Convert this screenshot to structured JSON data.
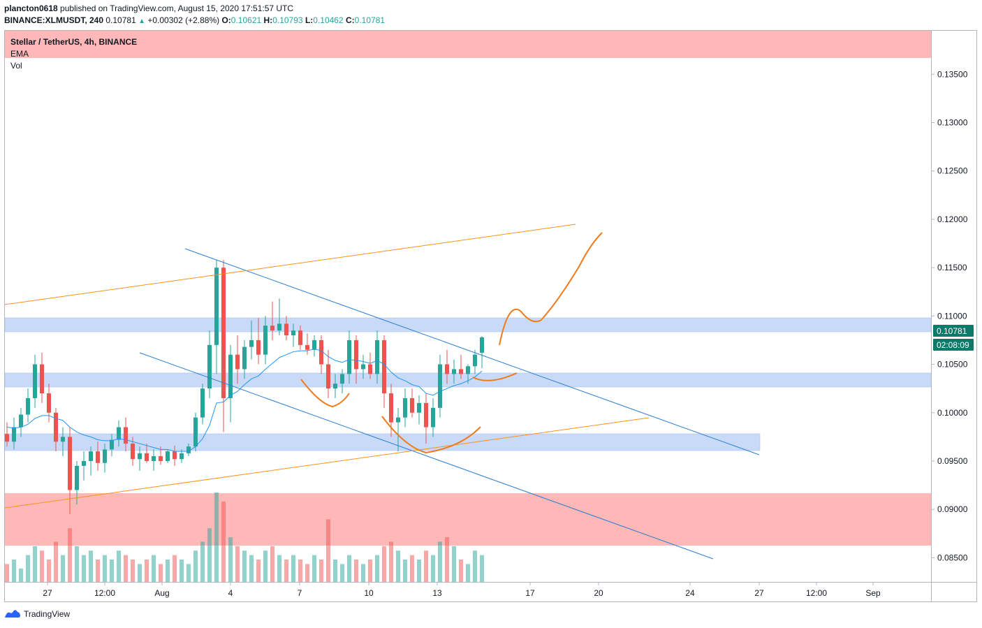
{
  "header": {
    "author": "plancton0618",
    "published_text": "published on TradingView.com, August 15, 2020 17:51:57 UTC",
    "symbol": "BINANCE:XLMUSDT, 240",
    "last": "0.10781",
    "change": "+0.00302 (+2.88%)",
    "o_label": "O:",
    "o_value": "0.10621",
    "h_label": "H:",
    "h_value": "0.10793",
    "l_label": "L:",
    "l_value": "0.10462",
    "c_label": "C:",
    "c_value": "0.10781"
  },
  "legend": {
    "title": "Stellar / TetherUS, 4h, BINANCE",
    "ema": "EMA",
    "vol": "Vol"
  },
  "price_axis": {
    "ticks": [
      "0.13500",
      "0.13000",
      "0.12500",
      "0.12000",
      "0.11500",
      "0.11000",
      "0.10500",
      "0.10000",
      "0.09500",
      "0.09000",
      "0.08500"
    ],
    "last_price_label": "0.10781",
    "countdown_label": "02:08:09"
  },
  "time_axis": {
    "ticks": [
      "27",
      "12:00",
      "Aug",
      "4",
      "7",
      "10",
      "13",
      "17",
      "20",
      "24",
      "27",
      "12:00",
      "Sep"
    ]
  },
  "footer": {
    "brand": "TradingView"
  },
  "colors": {
    "up": "#26a69a",
    "down": "#ef5350",
    "ema": "#2196f3",
    "trendline": "#2a7dd1",
    "orange": "#f7931a",
    "drawn_orange": "#ef7b1c",
    "zone_blue": "#c9daf8",
    "zone_red": "#ffb8b8",
    "price_tag": "#0b7a6a"
  },
  "chart_data": {
    "type": "candlestick",
    "symbol": "BINANCE:XLMUSDT",
    "interval": "4h",
    "ylim": [
      0.0825,
      0.1395
    ],
    "current_price": 0.10781,
    "ohlc": [
      [
        0.0978,
        0.099,
        0.0965,
        0.097
      ],
      [
        0.097,
        0.0995,
        0.0962,
        0.0985
      ],
      [
        0.0985,
        0.1005,
        0.0975,
        0.0998
      ],
      [
        0.0998,
        0.1025,
        0.099,
        0.1015
      ],
      [
        0.1015,
        0.106,
        0.1005,
        0.105
      ],
      [
        0.105,
        0.1062,
        0.101,
        0.102
      ],
      [
        0.102,
        0.103,
        0.099,
        0.1
      ],
      [
        0.1,
        0.1005,
        0.096,
        0.097
      ],
      [
        0.097,
        0.0985,
        0.0955,
        0.0975
      ],
      [
        0.0975,
        0.0985,
        0.0895,
        0.092
      ],
      [
        0.092,
        0.095,
        0.0905,
        0.0945
      ],
      [
        0.0945,
        0.096,
        0.093,
        0.095
      ],
      [
        0.095,
        0.0965,
        0.0935,
        0.096
      ],
      [
        0.096,
        0.097,
        0.094,
        0.0948
      ],
      [
        0.0948,
        0.0968,
        0.0938,
        0.0962
      ],
      [
        0.0962,
        0.0978,
        0.0955,
        0.0972
      ],
      [
        0.0972,
        0.0992,
        0.0965,
        0.0985
      ],
      [
        0.0985,
        0.0995,
        0.096,
        0.0968
      ],
      [
        0.0968,
        0.0975,
        0.0945,
        0.0952
      ],
      [
        0.0952,
        0.0965,
        0.094,
        0.0958
      ],
      [
        0.0958,
        0.0968,
        0.0948,
        0.095
      ],
      [
        0.095,
        0.0962,
        0.094,
        0.0955
      ],
      [
        0.0955,
        0.0965,
        0.0946,
        0.095
      ],
      [
        0.095,
        0.0962,
        0.0948,
        0.096
      ],
      [
        0.096,
        0.0966,
        0.0945,
        0.0952
      ],
      [
        0.0952,
        0.0962,
        0.0948,
        0.0958
      ],
      [
        0.0958,
        0.0968,
        0.0955,
        0.0965
      ],
      [
        0.0965,
        0.1,
        0.096,
        0.0995
      ],
      [
        0.0995,
        0.103,
        0.0988,
        0.1025
      ],
      [
        0.1025,
        0.1085,
        0.1015,
        0.107
      ],
      [
        0.107,
        0.1158,
        0.104,
        0.115
      ],
      [
        0.115,
        0.1158,
        0.098,
        0.1015
      ],
      [
        0.1015,
        0.107,
        0.099,
        0.106
      ],
      [
        0.106,
        0.108,
        0.103,
        0.1045
      ],
      [
        0.1045,
        0.1075,
        0.1035,
        0.1068
      ],
      [
        0.1068,
        0.1095,
        0.1055,
        0.1075
      ],
      [
        0.1075,
        0.1098,
        0.105,
        0.106
      ],
      [
        0.106,
        0.11,
        0.105,
        0.109
      ],
      [
        0.109,
        0.1115,
        0.1075,
        0.1085
      ],
      [
        0.1085,
        0.1118,
        0.108,
        0.1092
      ],
      [
        0.1092,
        0.11,
        0.1075,
        0.108
      ],
      [
        0.108,
        0.1092,
        0.1068,
        0.1085
      ],
      [
        0.1085,
        0.109,
        0.1065,
        0.107
      ],
      [
        0.107,
        0.1082,
        0.106,
        0.1065
      ],
      [
        0.1065,
        0.108,
        0.1058,
        0.1075
      ],
      [
        0.1075,
        0.108,
        0.104,
        0.105
      ],
      [
        0.105,
        0.1065,
        0.1015,
        0.1025
      ],
      [
        0.1025,
        0.104,
        0.1015,
        0.103
      ],
      [
        0.103,
        0.1045,
        0.102,
        0.104
      ],
      [
        0.104,
        0.1085,
        0.103,
        0.1075
      ],
      [
        0.1075,
        0.108,
        0.103,
        0.1045
      ],
      [
        0.1045,
        0.106,
        0.1035,
        0.105
      ],
      [
        0.105,
        0.1062,
        0.1035,
        0.104
      ],
      [
        0.104,
        0.1085,
        0.103,
        0.1075
      ],
      [
        0.1075,
        0.108,
        0.1005,
        0.102
      ],
      [
        0.102,
        0.103,
        0.0975,
        0.099
      ],
      [
        0.099,
        0.1005,
        0.096,
        0.0995
      ],
      [
        0.0995,
        0.1025,
        0.0985,
        0.1015
      ],
      [
        0.1015,
        0.1025,
        0.0995,
        0.1
      ],
      [
        0.1,
        0.1018,
        0.0988,
        0.101
      ],
      [
        0.101,
        0.102,
        0.0968,
        0.0985
      ],
      [
        0.0985,
        0.1015,
        0.0975,
        0.1005
      ],
      [
        0.1005,
        0.106,
        0.0995,
        0.105
      ],
      [
        0.105,
        0.1065,
        0.103,
        0.104
      ],
      [
        0.104,
        0.1055,
        0.103,
        0.1045
      ],
      [
        0.1045,
        0.106,
        0.1035,
        0.104
      ],
      [
        0.104,
        0.105,
        0.103,
        0.1048
      ],
      [
        0.1048,
        0.1065,
        0.104,
        0.106
      ],
      [
        0.1062,
        0.1079,
        0.1046,
        0.1078
      ]
    ],
    "volume": [
      4,
      5,
      3,
      6,
      8,
      7,
      5,
      9,
      6,
      12,
      8,
      6,
      7,
      5,
      6,
      5,
      7,
      6,
      5,
      4,
      5,
      6,
      4,
      5,
      6,
      5,
      4,
      7,
      9,
      12,
      20,
      18,
      10,
      8,
      7,
      6,
      5,
      7,
      8,
      6,
      5,
      6,
      5,
      4,
      6,
      5,
      14,
      5,
      4,
      6,
      5,
      4,
      5,
      6,
      8,
      9,
      7,
      5,
      6,
      5,
      7,
      6,
      9,
      10,
      8,
      5,
      4,
      7,
      6
    ],
    "ema": [
      0.0985,
      0.0984,
      0.0985,
      0.0988,
      0.0994,
      0.0997,
      0.0997,
      0.0994,
      0.0992,
      0.0985,
      0.098,
      0.0977,
      0.0975,
      0.0972,
      0.0971,
      0.0971,
      0.0973,
      0.0972,
      0.097,
      0.0968,
      0.0966,
      0.0964,
      0.0962,
      0.0962,
      0.096,
      0.096,
      0.096,
      0.0965,
      0.0973,
      0.0987,
      0.101,
      0.1011,
      0.1018,
      0.1022,
      0.1029,
      0.1035,
      0.1038,
      0.1045,
      0.1051,
      0.1057,
      0.106,
      0.1063,
      0.1064,
      0.1064,
      0.1066,
      0.1064,
      0.1058,
      0.1054,
      0.1052,
      0.1055,
      0.1054,
      0.1053,
      0.1051,
      0.1054,
      0.105,
      0.1042,
      0.1036,
      0.1033,
      0.1029,
      0.1027,
      0.102,
      0.1018,
      0.1022,
      0.1025,
      0.1028,
      0.103,
      0.1033,
      0.1037,
      0.1043
    ]
  }
}
